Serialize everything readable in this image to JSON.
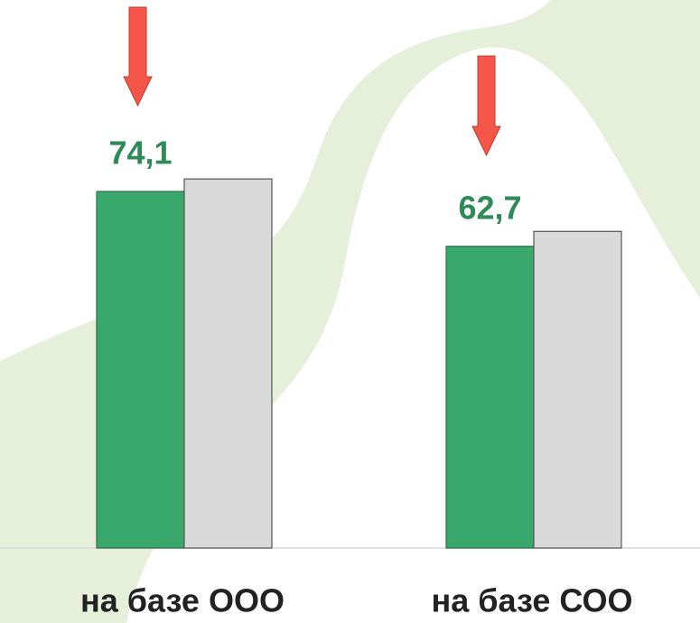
{
  "chart_data": {
    "type": "bar",
    "categories": [
      "на базе ООО",
      "на базе СОО"
    ],
    "series": [
      {
        "color": "#3aa76d",
        "values": [
          74.1,
          62.7
        ],
        "value_labels": [
          "74,1",
          "62,7"
        ]
      },
      {
        "color": "#d9d9d9",
        "values": [
          76.7,
          65.8
        ]
      }
    ]
  }
}
